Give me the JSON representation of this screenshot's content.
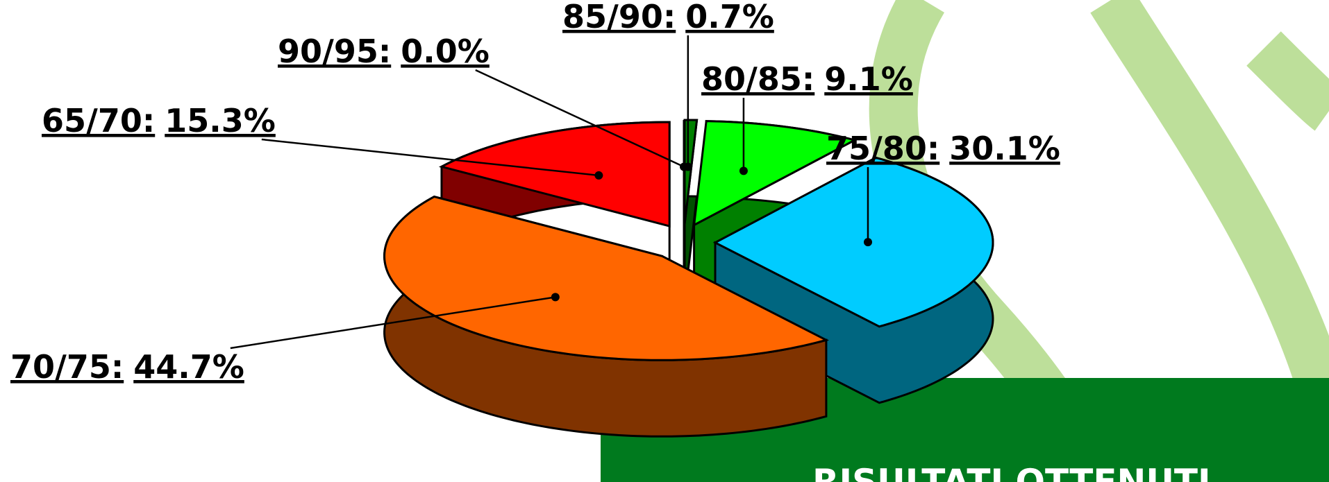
{
  "chart_data": {
    "type": "pie",
    "categories": [
      "65/70:",
      "70/75:",
      "75/80:",
      "80/85:",
      "85/90:",
      "90/95:"
    ],
    "values": [
      15.3,
      44.7,
      30.1,
      9.1,
      0.7,
      0.0
    ],
    "value_labels": [
      "15.3%",
      "44.7%",
      "30.1%",
      "9.1%",
      "0.7%",
      "0.0%"
    ],
    "colors": [
      "#ff0000",
      "#ff6600",
      "#00ccff",
      "#00ff00",
      "#008000",
      "#008000"
    ],
    "side_colors": [
      "#800000",
      "#803300",
      "#006680",
      "#008000",
      "#005000",
      "#005000"
    ],
    "box_title": "RISULTATI OTTENUTI"
  }
}
